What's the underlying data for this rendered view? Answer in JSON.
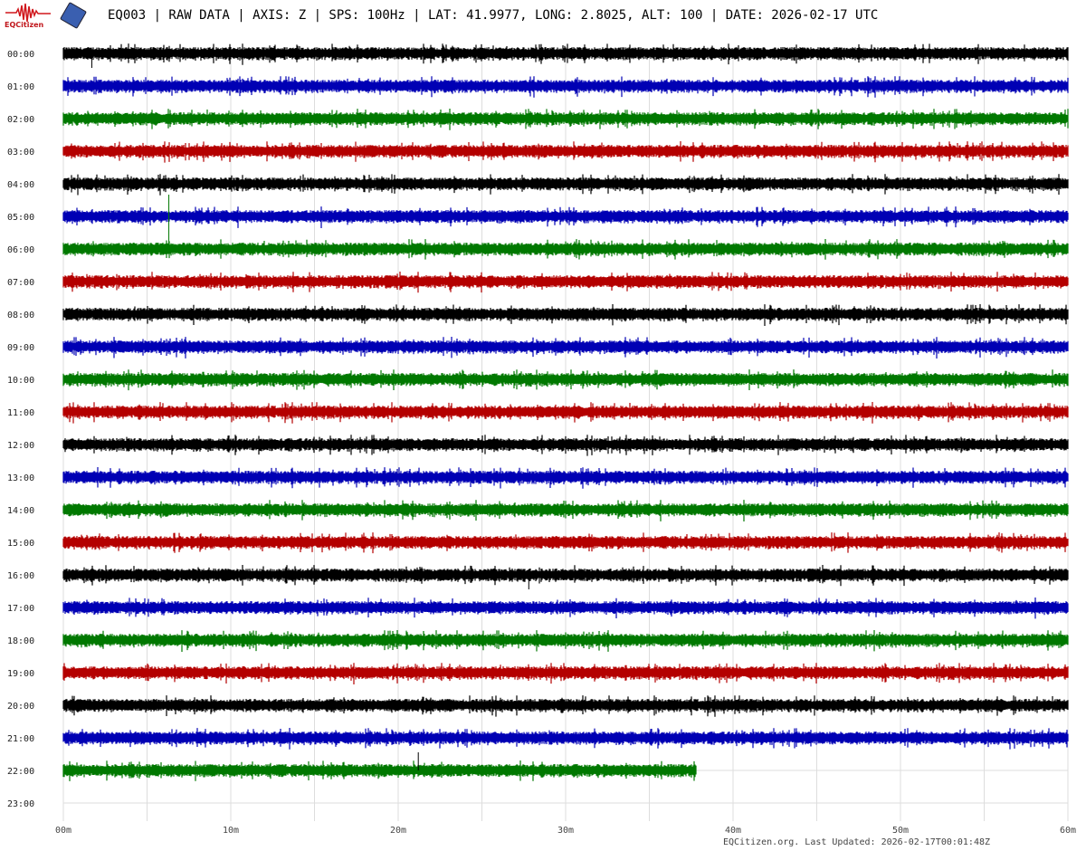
{
  "header": {
    "logo_text": "EQCitizen",
    "title": "EQ003 | RAW DATA | AXIS: Z | SPS: 100Hz | LAT: 41.9977, LONG: 2.8025, ALT: 100 | DATE: 2026-02-17 UTC"
  },
  "footer": {
    "text": "EQCitizen.org. Last Updated: 2026-02-17T00:01:48Z"
  },
  "chart_data": {
    "type": "line",
    "subtype": "helicorder",
    "xlim": [
      0,
      60
    ],
    "x_ticks": [
      "00m",
      "10m",
      "20m",
      "30m",
      "40m",
      "50m",
      "60m"
    ],
    "rows": [
      "00:00",
      "01:00",
      "02:00",
      "03:00",
      "04:00",
      "05:00",
      "06:00",
      "07:00",
      "08:00",
      "09:00",
      "10:00",
      "11:00",
      "12:00",
      "13:00",
      "14:00",
      "15:00",
      "16:00",
      "17:00",
      "18:00",
      "19:00",
      "20:00",
      "21:00",
      "22:00",
      "23:00"
    ],
    "row_colors": [
      "#000000",
      "#0000b4",
      "#007800",
      "#b40000"
    ],
    "data_end_minute": 37.8,
    "data_end_row": "22:00",
    "spikes": [
      {
        "row": "00:00",
        "minute": 1.7,
        "direction": "down"
      },
      {
        "row": "06:00",
        "minute": 6.3,
        "direction": "up"
      },
      {
        "row": "16:00",
        "minute": 27.8,
        "direction": "down"
      },
      {
        "row": "22:00",
        "minute": 21.2,
        "direction": "up"
      }
    ],
    "grid": true
  }
}
